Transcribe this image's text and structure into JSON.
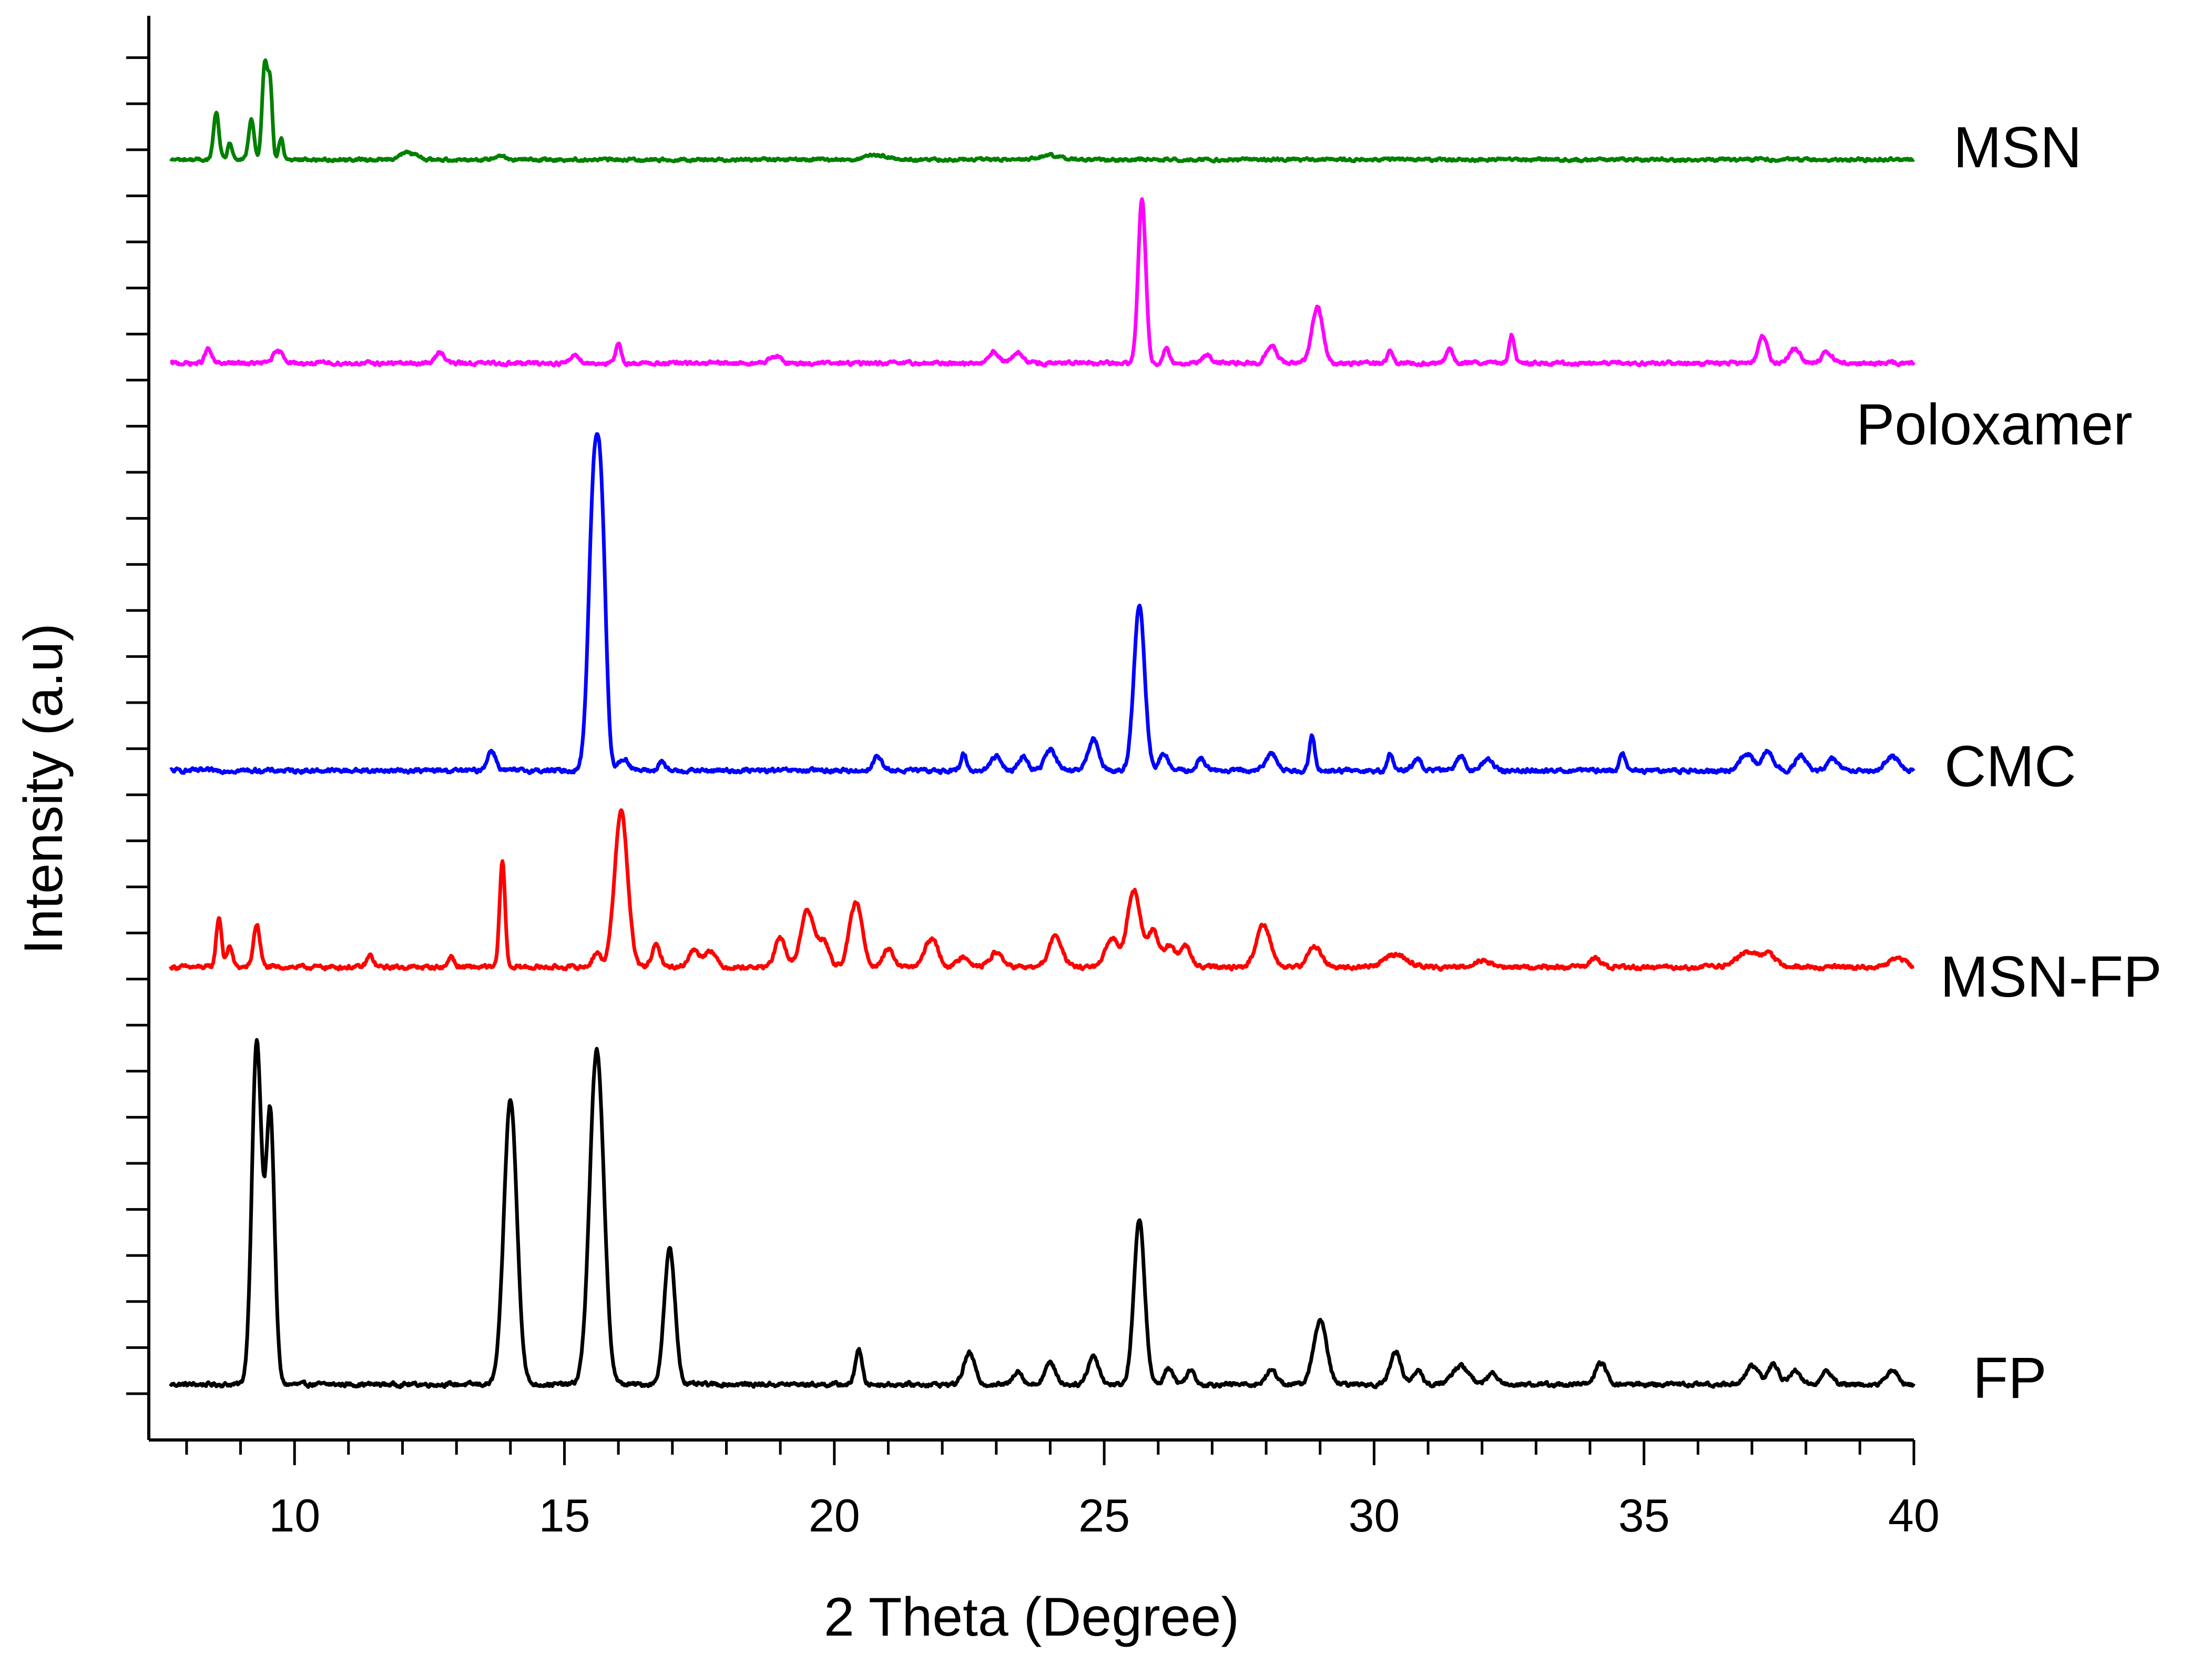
{
  "chart_data": {
    "type": "line",
    "title": "",
    "xlabel": "2 Theta (Degree)",
    "ylabel": "Intensity (a.u)",
    "xlim": [
      7.3,
      40
    ],
    "x_ticks": [
      10,
      15,
      20,
      25,
      30,
      35,
      40
    ],
    "x_tick_labels": [
      "10",
      "15",
      "20",
      "25",
      "30",
      "35",
      "40"
    ],
    "ylim": [
      0,
      100
    ],
    "y_tick_labels_shown": false,
    "legend": "inline labels at right end of each trace",
    "grid": false,
    "series": [
      {
        "name": "FP",
        "color": "#000000",
        "baseline": 3.9,
        "noise": 0.25,
        "peaks": [
          [
            9.3,
            24,
            0.09
          ],
          [
            9.55,
            19,
            0.08
          ],
          [
            14.0,
            20,
            0.12
          ],
          [
            15.6,
            23.5,
            0.13
          ],
          [
            16.95,
            9.5,
            0.1
          ],
          [
            20.45,
            2.5,
            0.06
          ],
          [
            22.5,
            2.2,
            0.1
          ],
          [
            23.4,
            1.0,
            0.08
          ],
          [
            24.0,
            1.5,
            0.1
          ],
          [
            24.8,
            2.0,
            0.1
          ],
          [
            25.65,
            11.5,
            0.1
          ],
          [
            26.2,
            1.2,
            0.08
          ],
          [
            26.6,
            1.0,
            0.08
          ],
          [
            28.1,
            1.0,
            0.1
          ],
          [
            29.0,
            4.5,
            0.12
          ],
          [
            30.4,
            2.3,
            0.1
          ],
          [
            30.8,
            1.0,
            0.08
          ],
          [
            31.6,
            1.3,
            0.15
          ],
          [
            32.2,
            0.8,
            0.1
          ],
          [
            34.2,
            1.5,
            0.1
          ],
          [
            37.0,
            1.3,
            0.12
          ],
          [
            37.4,
            1.4,
            0.1
          ],
          [
            37.8,
            1.0,
            0.1
          ],
          [
            38.4,
            0.9,
            0.1
          ],
          [
            39.6,
            1.0,
            0.1
          ]
        ]
      },
      {
        "name": "MSN-FP",
        "color": "#ff0000",
        "baseline": 33.2,
        "noise": 0.25,
        "peaks": [
          [
            8.6,
            3.5,
            0.05
          ],
          [
            8.8,
            1.5,
            0.05
          ],
          [
            9.3,
            3.0,
            0.06
          ],
          [
            11.4,
            0.8,
            0.06
          ],
          [
            12.9,
            0.8,
            0.05
          ],
          [
            13.85,
            7.5,
            0.05
          ],
          [
            15.6,
            1.0,
            0.08
          ],
          [
            16.05,
            11.0,
            0.12
          ],
          [
            16.7,
            1.5,
            0.08
          ],
          [
            17.4,
            1.2,
            0.1
          ],
          [
            17.7,
            1.2,
            0.1
          ],
          [
            19.0,
            2.0,
            0.1
          ],
          [
            19.5,
            4.0,
            0.12
          ],
          [
            19.8,
            1.8,
            0.1
          ],
          [
            20.4,
            4.5,
            0.12
          ],
          [
            21.0,
            1.2,
            0.1
          ],
          [
            21.8,
            2.0,
            0.12
          ],
          [
            22.4,
            0.8,
            0.1
          ],
          [
            23.0,
            1.0,
            0.12
          ],
          [
            24.1,
            2.2,
            0.12
          ],
          [
            25.15,
            2.0,
            0.12
          ],
          [
            25.55,
            5.5,
            0.12
          ],
          [
            25.9,
            2.5,
            0.1
          ],
          [
            26.2,
            1.5,
            0.1
          ],
          [
            26.5,
            1.5,
            0.1
          ],
          [
            27.95,
            3.0,
            0.13
          ],
          [
            28.9,
            1.5,
            0.12
          ],
          [
            30.4,
            0.9,
            0.2
          ],
          [
            32.0,
            0.5,
            0.15
          ],
          [
            34.1,
            0.6,
            0.1
          ],
          [
            36.9,
            1.0,
            0.2
          ],
          [
            37.3,
            0.8,
            0.15
          ],
          [
            39.7,
            0.6,
            0.15
          ]
        ]
      },
      {
        "name": "CMC",
        "color": "#0000ff",
        "baseline": 47.0,
        "noise": 0.25,
        "peaks": [
          [
            13.65,
            1.4,
            0.08
          ],
          [
            15.55,
            20.0,
            0.1
          ],
          [
            15.7,
            13.0,
            0.08
          ],
          [
            16.1,
            0.8,
            0.1
          ],
          [
            16.8,
            0.7,
            0.05
          ],
          [
            20.8,
            1.0,
            0.08
          ],
          [
            22.4,
            1.2,
            0.05
          ],
          [
            23.0,
            1.0,
            0.1
          ],
          [
            23.5,
            1.0,
            0.08
          ],
          [
            24.0,
            1.5,
            0.1
          ],
          [
            24.8,
            2.2,
            0.1
          ],
          [
            25.65,
            11.5,
            0.1
          ],
          [
            26.1,
            1.2,
            0.08
          ],
          [
            26.8,
            0.8,
            0.08
          ],
          [
            28.1,
            1.2,
            0.1
          ],
          [
            28.85,
            2.5,
            0.05
          ],
          [
            30.3,
            1.2,
            0.05
          ],
          [
            30.8,
            0.8,
            0.08
          ],
          [
            31.6,
            1.0,
            0.08
          ],
          [
            32.1,
            0.8,
            0.1
          ],
          [
            34.6,
            1.2,
            0.05
          ],
          [
            36.9,
            1.2,
            0.12
          ],
          [
            37.3,
            1.4,
            0.1
          ],
          [
            37.9,
            1.0,
            0.1
          ],
          [
            38.5,
            0.8,
            0.1
          ],
          [
            39.6,
            1.0,
            0.12
          ]
        ]
      },
      {
        "name": "Poloxamer",
        "color": "#ff00ff",
        "baseline": 75.6,
        "noise": 0.22,
        "peaks": [
          [
            8.4,
            1.0,
            0.06
          ],
          [
            9.7,
            0.8,
            0.1
          ],
          [
            12.7,
            0.8,
            0.08
          ],
          [
            15.2,
            0.6,
            0.08
          ],
          [
            16.0,
            1.3,
            0.05
          ],
          [
            18.9,
            0.5,
            0.1
          ],
          [
            22.95,
            0.8,
            0.1
          ],
          [
            23.4,
            0.7,
            0.1
          ],
          [
            25.7,
            11.5,
            0.07
          ],
          [
            26.15,
            1.2,
            0.05
          ],
          [
            26.9,
            0.6,
            0.08
          ],
          [
            28.1,
            1.2,
            0.1
          ],
          [
            28.95,
            4.0,
            0.1
          ],
          [
            30.3,
            1.0,
            0.05
          ],
          [
            31.4,
            1.0,
            0.06
          ],
          [
            32.55,
            2.0,
            0.05
          ],
          [
            37.2,
            2.0,
            0.08
          ],
          [
            37.8,
            1.0,
            0.1
          ],
          [
            38.4,
            0.8,
            0.1
          ]
        ]
      },
      {
        "name": "MSN",
        "color": "#008000",
        "baseline": 89.9,
        "noise": 0.18,
        "peaks": [
          [
            8.55,
            3.3,
            0.05
          ],
          [
            8.8,
            1.2,
            0.04
          ],
          [
            9.2,
            2.8,
            0.05
          ],
          [
            9.45,
            6.8,
            0.05
          ],
          [
            9.55,
            5.0,
            0.04
          ],
          [
            9.75,
            1.5,
            0.04
          ],
          [
            12.1,
            0.5,
            0.15
          ],
          [
            13.8,
            0.3,
            0.1
          ],
          [
            20.8,
            0.3,
            0.2
          ],
          [
            24.0,
            0.3,
            0.2
          ]
        ]
      }
    ]
  }
}
